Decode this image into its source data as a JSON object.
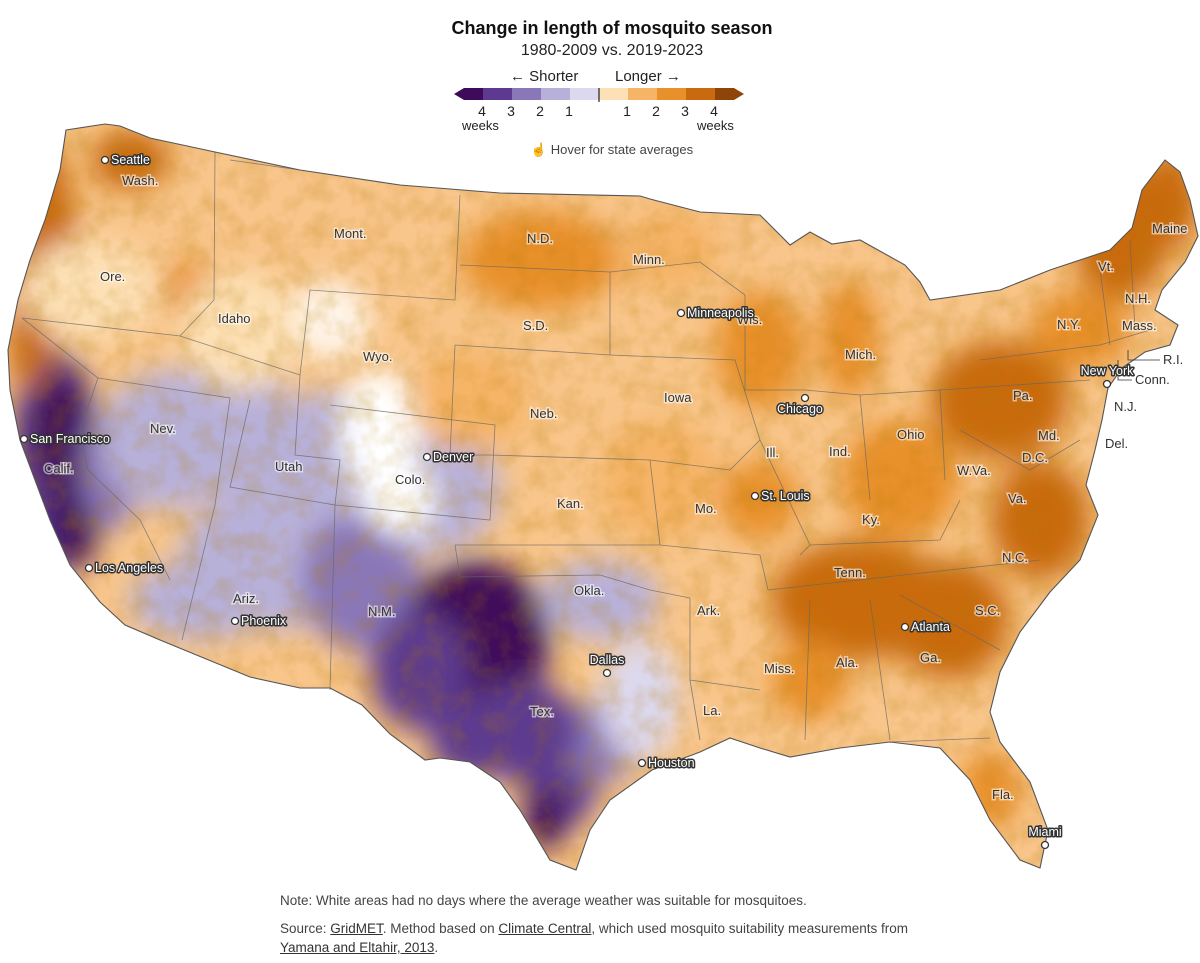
{
  "header": {
    "title": "Change in length of mosquito season",
    "subtitle": "1980-2009 vs. 2019-2023"
  },
  "legend": {
    "shorter_label": "← Shorter",
    "longer_label": "Longer →",
    "left_ticks": [
      "4",
      "3",
      "2",
      "1"
    ],
    "right_ticks": [
      "1",
      "2",
      "3",
      "4"
    ],
    "unit_left": "weeks",
    "unit_right": "weeks",
    "colors": [
      "#3f0a5a",
      "#5d3a8f",
      "#8a77b8",
      "#b7b0d8",
      "#dcd8ee",
      "#fde0b5",
      "#f5b466",
      "#e8902a",
      "#c96a10",
      "#8f4508"
    ]
  },
  "hint": {
    "icon": "pointer-hand-icon",
    "text": "Hover for state averages"
  },
  "states": [
    "Wash.",
    "Ore.",
    "Calif.",
    "Nev.",
    "Idaho",
    "Mont.",
    "Wyo.",
    "Utah",
    "Ariz.",
    "Colo.",
    "N.M.",
    "N.D.",
    "S.D.",
    "Neb.",
    "Kan.",
    "Okla.",
    "Tex.",
    "Minn.",
    "Iowa",
    "Mo.",
    "Ark.",
    "La.",
    "Wis.",
    "Ill.",
    "Mich.",
    "Ind.",
    "Ohio",
    "Ky.",
    "Tenn.",
    "Miss.",
    "Ala.",
    "Ga.",
    "Fla.",
    "S.C.",
    "N.C.",
    "Va.",
    "W.Va.",
    "Pa.",
    "N.Y.",
    "Vt.",
    "N.H.",
    "Maine",
    "Mass.",
    "R.I.",
    "Conn.",
    "N.J.",
    "Del.",
    "Md.",
    "D.C."
  ],
  "cities": [
    "Seattle",
    "San Francisco",
    "Los Angeles",
    "Phoenix",
    "Denver",
    "Dallas",
    "Houston",
    "Minneapolis",
    "Chicago",
    "St. Louis",
    "Atlanta",
    "New York",
    "Miami"
  ],
  "footer": {
    "note": "Note: White areas had no days where the average weather was suitable for mosquitoes.",
    "source_prefix": "Source: ",
    "source_link1": "GridMET",
    "source_mid": ". Method based on ",
    "source_link2": "Climate Central",
    "source_mid2": ", which used mosquito suitability measurements from ",
    "source_link3": "Yamana and Eltahir, 2013",
    "source_end": "."
  }
}
